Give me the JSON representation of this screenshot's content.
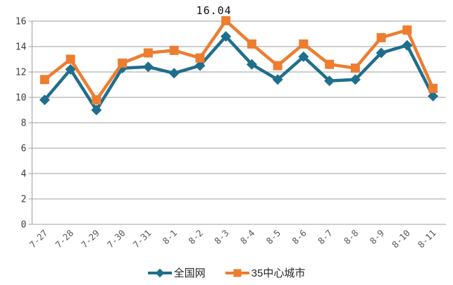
{
  "chart_data": {
    "type": "line",
    "title": "",
    "xlabel": "",
    "ylabel": "",
    "categories": [
      "7-27",
      "7-28",
      "7-29",
      "7-30",
      "7-31",
      "8-1",
      "8-2",
      "8-3",
      "8-4",
      "8-5",
      "8-6",
      "8-7",
      "8-8",
      "8-9",
      "8-10",
      "8-11"
    ],
    "series": [
      {
        "name": "全国网",
        "marker": "diamond",
        "color": "#1F6E8C",
        "values": [
          9.8,
          12.2,
          9.0,
          12.3,
          12.4,
          11.9,
          12.5,
          14.8,
          12.6,
          11.4,
          13.2,
          11.3,
          11.4,
          13.5,
          14.1,
          10.1
        ]
      },
      {
        "name": "35中心城市",
        "marker": "square",
        "color": "#ED7D31",
        "values": [
          11.4,
          13.0,
          9.8,
          12.7,
          13.5,
          13.7,
          13.1,
          16.04,
          14.2,
          12.5,
          14.2,
          12.6,
          12.3,
          14.7,
          15.3,
          10.7
        ]
      }
    ],
    "ylim": [
      0,
      16
    ],
    "y_ticks": [
      0,
      2,
      4,
      6,
      8,
      10,
      12,
      14,
      16
    ],
    "grid": true,
    "legend_position": "bottom",
    "annotation": {
      "text": "16.04",
      "series": "35中心城市",
      "category": "8-3",
      "value": 16.04
    }
  },
  "colors": {
    "grid": "#9f9f9f",
    "axis": "#9f9f9f",
    "y_label": "#3d3d3d",
    "x_label": "#595959",
    "annotation": "#111111",
    "background": "#ffffff"
  }
}
